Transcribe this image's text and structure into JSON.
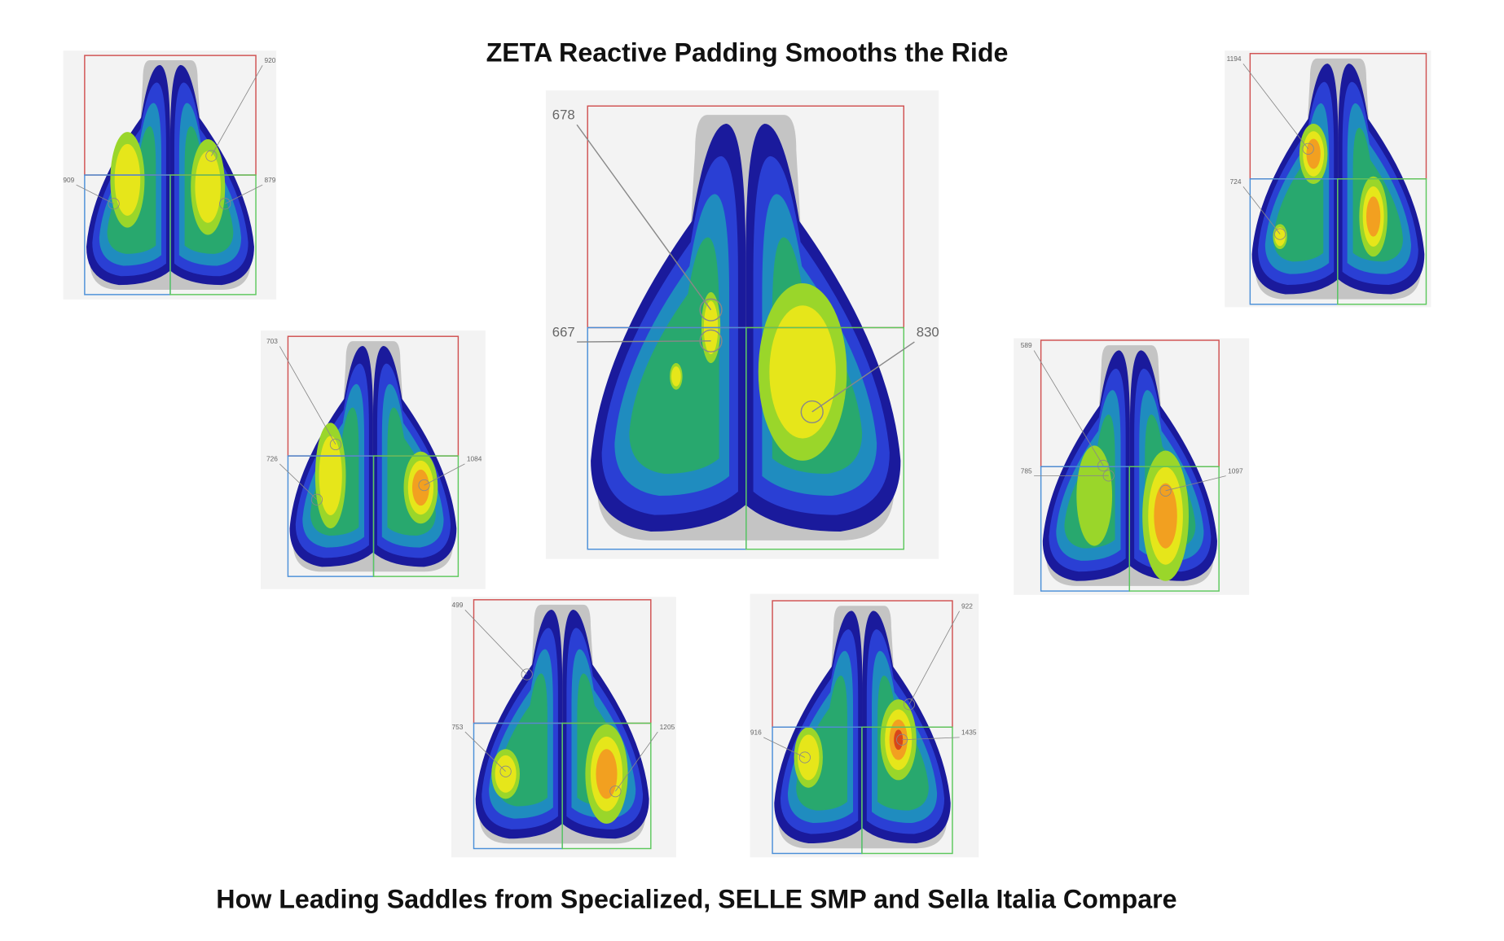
{
  "title": "ZETA Reactive Padding Smooths the Ride",
  "subtitle": "How Leading Saddles from Specialized, SELLE SMP and Sella Italia Compare",
  "panels": [
    {
      "labels": [
        920,
        909,
        879
      ]
    },
    {
      "labels": [
        1194,
        724
      ]
    },
    {
      "labels": [
        703,
        726,
        1084
      ]
    },
    {
      "labels": [
        678,
        667,
        830
      ]
    },
    {
      "labels": [
        589,
        785,
        1097
      ]
    },
    {
      "labels": [
        499,
        753,
        1205
      ]
    },
    {
      "labels": [
        922,
        916,
        1435
      ]
    }
  ]
}
